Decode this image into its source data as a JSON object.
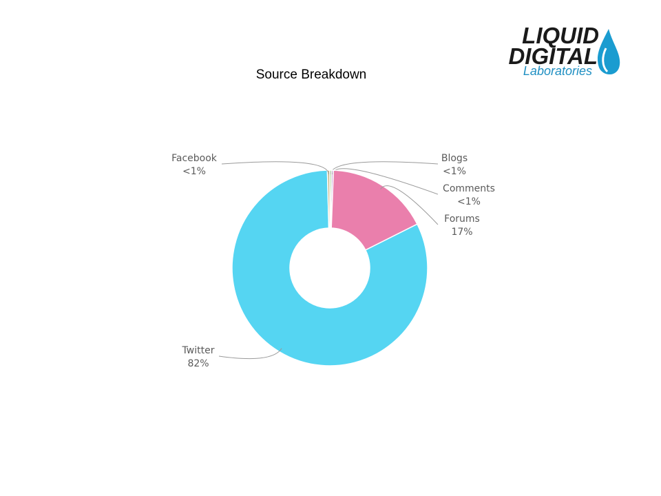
{
  "chart_data": {
    "type": "donut",
    "title": "Source Breakdown",
    "categories": [
      "Blogs",
      "Comments",
      "Forums",
      "Twitter",
      "Facebook"
    ],
    "values": [
      0.3,
      0.3,
      17,
      82,
      0.4
    ],
    "value_labels": [
      "<1%",
      "<1%",
      "17%",
      "82%",
      "<1%"
    ],
    "colors": [
      "#8fc97a",
      "#c9a0dc",
      "#ea7fac",
      "#55d5f2",
      "#c8b98a"
    ]
  },
  "logo": {
    "line1": "LIQUID",
    "line2": "DIGITAL",
    "line3": "Laboratories"
  }
}
